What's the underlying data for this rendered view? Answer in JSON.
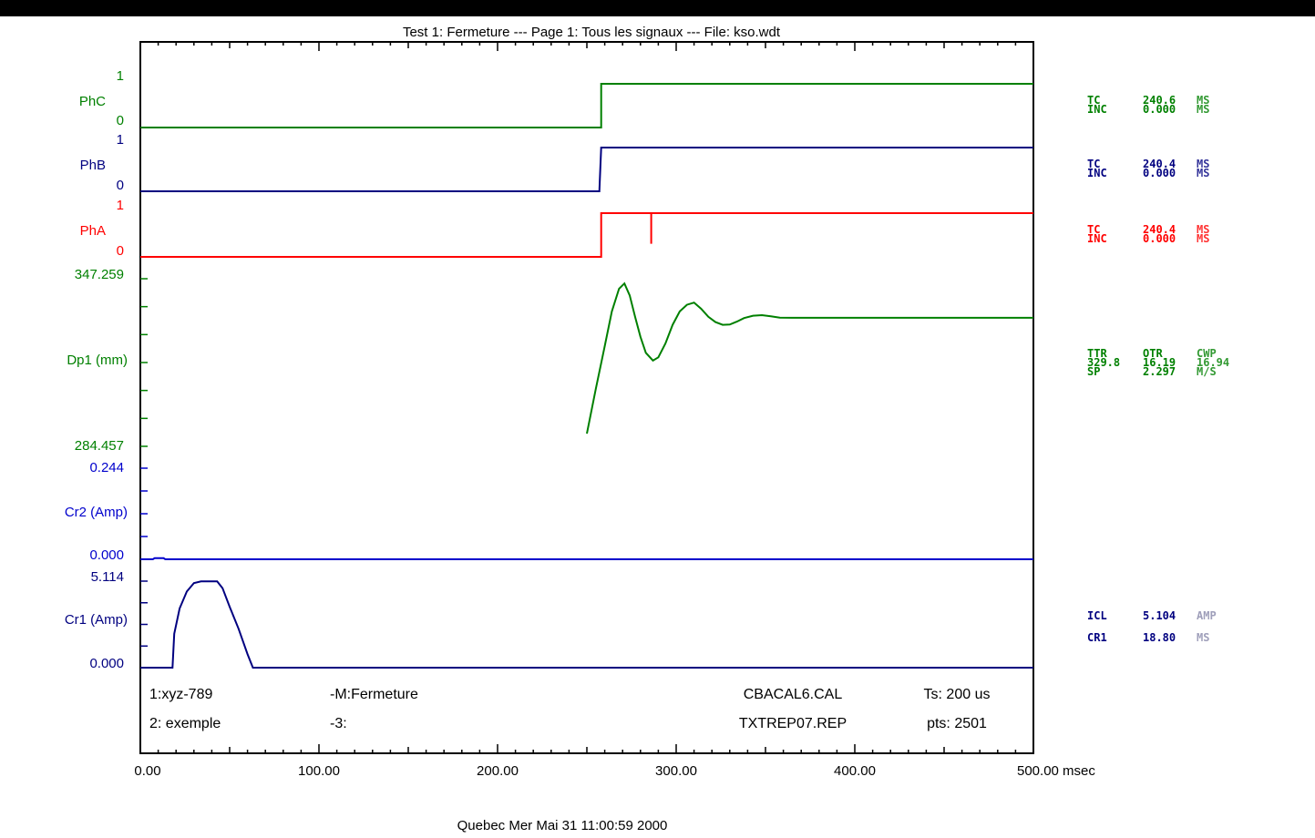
{
  "title": "Test 1: Fermeture --- Page 1: Tous les signaux --- File: kso.wdt",
  "footer": "Quebec   Mer Mai 31 11:00:59 2000",
  "info_rows": [
    {
      "c1": "1:xyz-789",
      "c2": "-M:Fermeture",
      "c3": "CBACAL6.CAL",
      "c4": "Ts: 200 us"
    },
    {
      "c1": "2: exemple",
      "c2": "-3:",
      "c3": "TXTREP07.REP",
      "c4": "pts: 2501"
    }
  ],
  "chart_data": {
    "type": "line",
    "x_unit": "msec",
    "xlim": [
      0,
      500
    ],
    "x_ticks": [
      "0.00",
      "100.00",
      "200.00",
      "300.00",
      "400.00",
      "500.00 msec"
    ],
    "channels": [
      {
        "name": "PhC",
        "color": "#008000",
        "ymax_label": "1",
        "ymin_label": "0",
        "steps": [
          [
            0,
            0
          ],
          [
            258,
            0
          ],
          [
            258,
            1
          ],
          [
            500,
            1
          ]
        ],
        "readout": {
          "lines": [
            [
              "TC",
              "240.6",
              "MS"
            ],
            [
              "INC",
              "0.000",
              "MS"
            ]
          ]
        }
      },
      {
        "name": "PhB",
        "color": "#000080",
        "ymax_label": "1",
        "ymin_label": "0",
        "steps": [
          [
            0,
            0
          ],
          [
            257,
            0
          ],
          [
            258,
            1
          ],
          [
            500,
            1
          ]
        ],
        "readout": {
          "lines": [
            [
              "TC",
              "240.4",
              "MS"
            ],
            [
              "INC",
              "0.000",
              "MS"
            ]
          ]
        }
      },
      {
        "name": "PhA",
        "color": "#ff0000",
        "ymax_label": "1",
        "ymin_label": "0",
        "steps": [
          [
            0,
            0
          ],
          [
            258,
            0
          ],
          [
            258,
            1
          ],
          [
            286,
            1
          ],
          [
            286,
            0.3
          ],
          [
            286,
            1
          ],
          [
            500,
            1
          ]
        ],
        "readout": {
          "lines": [
            [
              "TC",
              "240.4",
              "MS"
            ],
            [
              "INC",
              "0.000",
              "MS"
            ]
          ]
        }
      },
      {
        "name": "Dp1 (mm)",
        "color": "#008000",
        "ymax_label": "347.259",
        "ymin_label": "284.457",
        "ylim": [
          284.457,
          347.259
        ],
        "points": [
          [
            250,
            289.2
          ],
          [
            255,
            306
          ],
          [
            260,
            322
          ],
          [
            264,
            335
          ],
          [
            268,
            343.5
          ],
          [
            271,
            345.5
          ],
          [
            274,
            341
          ],
          [
            277,
            333
          ],
          [
            280,
            325.5
          ],
          [
            283,
            319.5
          ],
          [
            287,
            316.6
          ],
          [
            290,
            317.8
          ],
          [
            294,
            323
          ],
          [
            298,
            330
          ],
          [
            302,
            335
          ],
          [
            306,
            337.5
          ],
          [
            310,
            338.3
          ],
          [
            314,
            336
          ],
          [
            318,
            333
          ],
          [
            322,
            331
          ],
          [
            326,
            330
          ],
          [
            330,
            330.1
          ],
          [
            334,
            331.2
          ],
          [
            338,
            332.5
          ],
          [
            343,
            333.4
          ],
          [
            348,
            333.6
          ],
          [
            353,
            333.2
          ],
          [
            358,
            332.7
          ],
          [
            365,
            332.6
          ],
          [
            380,
            332.6
          ],
          [
            500,
            332.6
          ]
        ],
        "readout": {
          "labels": [
            "TTR",
            "OTR",
            "CWP",
            "SP"
          ],
          "values": [
            "329.8",
            "16.19",
            "16.94",
            "2.297"
          ],
          "unit": "M/S"
        }
      },
      {
        "name": "Cr2 (Amp)",
        "color": "#0000cc",
        "ymax_label": "0.244",
        "ymin_label": "0.000",
        "ylim": [
          0,
          0.244
        ],
        "points": [
          [
            0,
            0
          ],
          [
            7,
            0
          ],
          [
            8,
            0.003
          ],
          [
            13,
            0.003
          ],
          [
            14,
            0
          ],
          [
            500,
            0
          ]
        ]
      },
      {
        "name": "Cr1 (Amp)",
        "color": "#000080",
        "ymax_label": "5.114",
        "ymin_label": "0.000",
        "ylim": [
          0,
          5.114
        ],
        "points": [
          [
            0,
            0
          ],
          [
            18,
            0
          ],
          [
            19,
            2.0
          ],
          [
            22,
            3.5
          ],
          [
            26,
            4.5
          ],
          [
            30,
            5.0
          ],
          [
            34,
            5.1
          ],
          [
            43,
            5.1
          ],
          [
            46,
            4.7
          ],
          [
            50,
            3.6
          ],
          [
            55,
            2.3
          ],
          [
            60,
            0.8
          ],
          [
            63,
            0
          ],
          [
            500,
            0
          ]
        ],
        "readout": {
          "lines": [
            [
              "ICL",
              "5.104",
              "AMP"
            ],
            [
              "CR1",
              "18.80",
              "MS"
            ]
          ]
        }
      }
    ]
  }
}
